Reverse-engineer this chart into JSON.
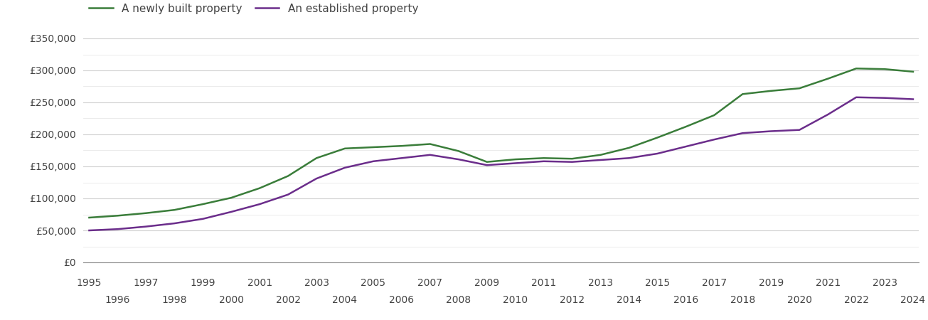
{
  "newly_built": {
    "years": [
      1995,
      1996,
      1997,
      1998,
      1999,
      2000,
      2001,
      2002,
      2003,
      2004,
      2005,
      2006,
      2007,
      2008,
      2009,
      2010,
      2011,
      2012,
      2013,
      2014,
      2015,
      2016,
      2017,
      2018,
      2019,
      2020,
      2021,
      2022,
      2023,
      2024
    ],
    "values": [
      70000,
      73000,
      77000,
      82000,
      91000,
      101000,
      116000,
      135000,
      163000,
      178000,
      180000,
      182000,
      185000,
      174000,
      157000,
      161000,
      163000,
      162000,
      168000,
      179000,
      195000,
      212000,
      230000,
      263000,
      268000,
      272000,
      287000,
      303000,
      302000,
      298000
    ]
  },
  "established": {
    "years": [
      1995,
      1996,
      1997,
      1998,
      1999,
      2000,
      2001,
      2002,
      2003,
      2004,
      2005,
      2006,
      2007,
      2008,
      2009,
      2010,
      2011,
      2012,
      2013,
      2014,
      2015,
      2016,
      2017,
      2018,
      2019,
      2020,
      2021,
      2022,
      2023,
      2024
    ],
    "values": [
      50000,
      52000,
      56000,
      61000,
      68000,
      79000,
      91000,
      106000,
      131000,
      148000,
      158000,
      163000,
      168000,
      161000,
      152000,
      155000,
      158000,
      157000,
      160000,
      163000,
      170000,
      181000,
      192000,
      202000,
      205000,
      207000,
      231000,
      258000,
      257000,
      255000
    ]
  },
  "newly_built_color": "#3a7d3a",
  "established_color": "#6b2d8b",
  "newly_built_label": "A newly built property",
  "established_label": "An established property",
  "ylim": [
    0,
    350000
  ],
  "yticks": [
    0,
    50000,
    100000,
    150000,
    200000,
    250000,
    300000,
    350000
  ],
  "minor_yticks": [
    25000,
    75000,
    125000,
    175000,
    225000,
    275000,
    325000
  ],
  "background_color": "#ffffff",
  "grid_color": "#d0d0d0",
  "minor_grid_color": "#e8e8e8",
  "line_width": 1.8,
  "legend_fontsize": 11,
  "tick_fontsize": 10,
  "tick_color": "#444444",
  "xlim_min": 1995,
  "xlim_max": 2024
}
